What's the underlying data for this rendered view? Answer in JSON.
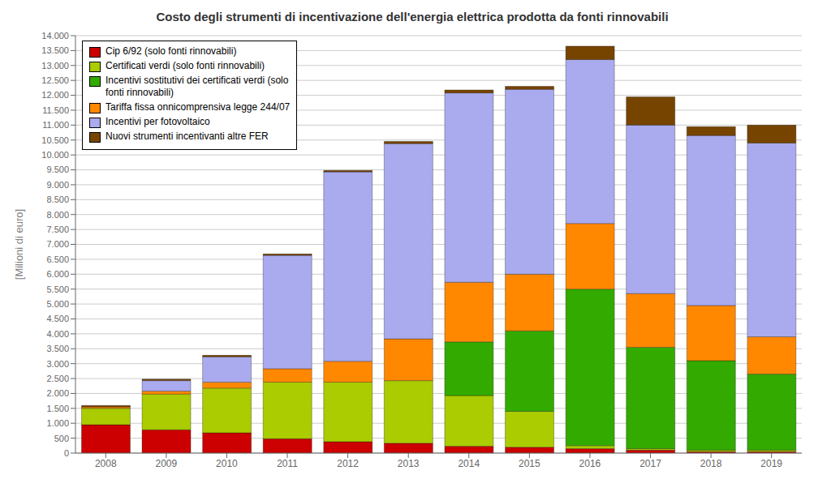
{
  "chart_data": {
    "type": "bar",
    "stacked": true,
    "title": "Costo degli strumenti di incentivazione dell'energia elettrica prodotta da fonti rinnovabili",
    "y_label": "[Milioni di euro]",
    "categories": [
      "2008",
      "2009",
      "2010",
      "2011",
      "2012",
      "2013",
      "2014",
      "2015",
      "2016",
      "2017",
      "2018",
      "2019"
    ],
    "series": [
      {
        "name": "Cip 6/92 (solo fonti rinnovabili)",
        "color": "#CC0000",
        "values": [
          950,
          780,
          680,
          480,
          380,
          330,
          230,
          200,
          150,
          100,
          50,
          50
        ]
      },
      {
        "name": "Certificati verdi (solo fonti rinnovabili)",
        "color": "#AACC00",
        "values": [
          550,
          1200,
          1500,
          1900,
          2000,
          2100,
          1700,
          1200,
          100,
          50,
          50,
          50
        ]
      },
      {
        "name": "Incentivi sostitutivi dei certificati verdi (solo\nfonti rinnovabili)",
        "color": "#33AA00",
        "values": [
          0,
          0,
          0,
          0,
          0,
          0,
          1800,
          2700,
          5250,
          3400,
          3000,
          2550
        ]
      },
      {
        "name": "Tariffa fissa onnicomprensiva legge 244/07",
        "color": "#FF8800",
        "values": [
          50,
          100,
          200,
          450,
          700,
          1400,
          2000,
          1900,
          2200,
          1800,
          1850,
          1250
        ]
      },
      {
        "name": "Incentivi per fotovoltaico",
        "color": "#AAAAEE",
        "values": [
          0,
          350,
          850,
          3800,
          6350,
          6550,
          6350,
          6200,
          5500,
          5650,
          5700,
          6500
        ]
      },
      {
        "name": "Nuovi strumenti incentivanti altre FER",
        "color": "#774400",
        "values": [
          50,
          50,
          50,
          50,
          50,
          75,
          100,
          100,
          450,
          950,
          300,
          600
        ]
      }
    ],
    "ylim": [
      0,
      14000
    ],
    "yticks": [
      0,
      500,
      {
        "value": 1000,
        "label": "1.000"
      },
      {
        "value": 1500,
        "label": "1.500"
      },
      {
        "value": 2000,
        "label": "2.000"
      },
      {
        "value": 2500,
        "label": "2.500"
      },
      {
        "value": 3000,
        "label": "3.000"
      },
      {
        "value": 3500,
        "label": "3.500"
      },
      {
        "value": 4000,
        "label": "4.000"
      },
      {
        "value": 4500,
        "label": "4.500"
      },
      {
        "value": 5000,
        "label": "5.000"
      },
      {
        "value": 5500,
        "label": "5.500"
      },
      {
        "value": 6000,
        "label": "6.000"
      },
      {
        "value": 6500,
        "label": "6.500"
      },
      {
        "value": 7000,
        "label": "7.000"
      },
      {
        "value": 7500,
        "label": "7.500"
      },
      {
        "value": 8000,
        "label": "8.000"
      },
      {
        "value": 8500,
        "label": "8.500"
      },
      {
        "value": 9000,
        "label": "9.000"
      },
      {
        "value": 9500,
        "label": "9.500"
      },
      {
        "value": 10000,
        "label": "10.000"
      },
      {
        "value": 10500,
        "label": "10.500"
      },
      {
        "value": 11000,
        "label": "11.000"
      },
      {
        "value": 11500,
        "label": "11.500"
      },
      {
        "value": 12000,
        "label": "12.000"
      },
      {
        "value": 12500,
        "label": "12.500"
      },
      {
        "value": 13000,
        "label": "13.000"
      },
      {
        "value": 13500,
        "label": "13.500"
      },
      {
        "value": 14000,
        "label": "14.000"
      }
    ],
    "grid": true,
    "legend": "upper left"
  }
}
